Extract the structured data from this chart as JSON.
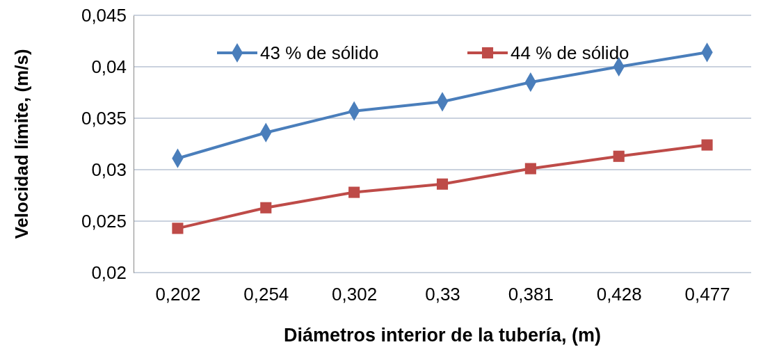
{
  "chart_data": {
    "type": "line",
    "xlabel": "Diámetros interior de la tubería, (m)",
    "ylabel": "Velocidad límite, (m/s)",
    "categories": [
      "0,202",
      "0,254",
      "0,302",
      "0,33",
      "0,381",
      "0,428",
      "0,477"
    ],
    "series": [
      {
        "name": "43 % de sólido",
        "color": "#4a7ebb",
        "marker": "diamond",
        "values": [
          0.0311,
          0.0336,
          0.0357,
          0.0366,
          0.0385,
          0.04,
          0.0414
        ]
      },
      {
        "name": "44 % de sólido",
        "color": "#be4b48",
        "marker": "square",
        "values": [
          0.0243,
          0.0263,
          0.0278,
          0.0286,
          0.0301,
          0.0313,
          0.0324
        ]
      }
    ],
    "ylim": [
      0.02,
      0.045
    ],
    "yticks": [
      {
        "value": 0.02,
        "label": "0,02"
      },
      {
        "value": 0.025,
        "label": "0,025"
      },
      {
        "value": 0.03,
        "label": "0,03"
      },
      {
        "value": 0.035,
        "label": "0,035"
      },
      {
        "value": 0.04,
        "label": "0,04"
      },
      {
        "value": 0.045,
        "label": "0,045"
      }
    ],
    "grid": "y",
    "legend": "top",
    "line_style": "solid"
  }
}
